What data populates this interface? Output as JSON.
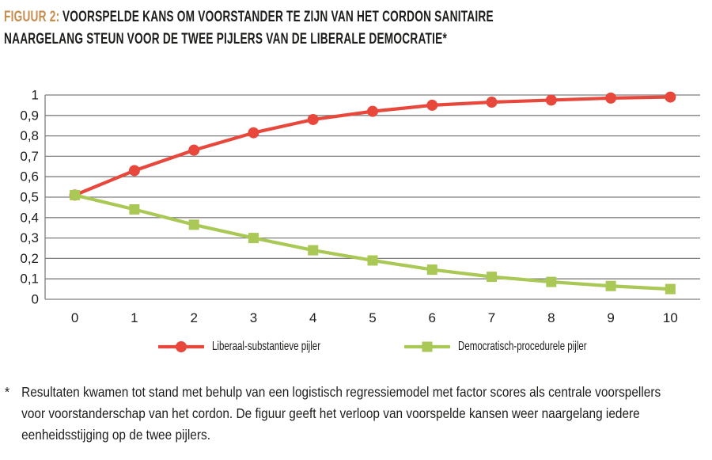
{
  "figure": {
    "title_prefix": "FIGUUR 2:",
    "title_prefix_color": "#c68c4e",
    "title_line1": "VOORSPELDE KANS OM VOORSTANDER TE ZIJN VAN HET CORDON SANITAIRE",
    "title_line2": "NAARGELANG STEUN VOOR DE TWEE PIJLERS VAN DE LIBERALE DEMOCRATIE*"
  },
  "chart_data": {
    "type": "line",
    "x": [
      "0",
      "1",
      "2",
      "3",
      "4",
      "5",
      "6",
      "7",
      "8",
      "9",
      "10"
    ],
    "series": [
      {
        "name": "Liberaal-substantieve pijler",
        "color": "#e8473c",
        "marker": "circle",
        "values": [
          0.51,
          0.63,
          0.73,
          0.815,
          0.88,
          0.92,
          0.95,
          0.965,
          0.975,
          0.985,
          0.99
        ]
      },
      {
        "name": "Democratisch-procedurele pijler",
        "color": "#aac855",
        "marker": "square",
        "values": [
          0.51,
          0.44,
          0.365,
          0.3,
          0.24,
          0.19,
          0.145,
          0.11,
          0.085,
          0.065,
          0.05
        ]
      }
    ],
    "ylim": [
      0,
      1
    ],
    "ytick_values": [
      0,
      0.1,
      0.2,
      0.3,
      0.4,
      0.5,
      0.6,
      0.7,
      0.8,
      0.9,
      1
    ],
    "ytick_labels": [
      "0",
      "0,1",
      "0,2",
      "0,3",
      "0,4",
      "0,5",
      "0,6",
      "0,7",
      "0,8",
      "0,9",
      "1"
    ],
    "grid": "horizontal",
    "gridline_color": "#7f7f7f",
    "legend_position": "bottom"
  },
  "footnote": {
    "marker": "*",
    "text": "Resultaten kwamen tot stand met behulp van een logistisch regressiemodel met factor scores als centrale voorspellers\nvoor voorstanderschap van het cordon. De figuur geeft het verloop van voorspelde kansen weer naargelang iedere\neenheidsstijging op de twee pijlers."
  }
}
